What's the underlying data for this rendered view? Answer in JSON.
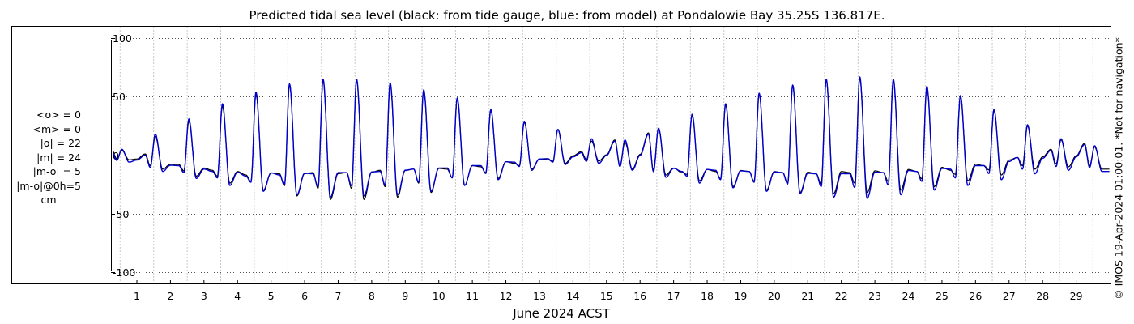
{
  "chart_data": {
    "type": "line",
    "title": "Predicted tidal sea level (black: from tide gauge, blue: from model) at Pondalowie Bay 35.25S 136.817E.",
    "xlabel": "June 2024 ACST",
    "ylabel": "",
    "xlim": [
      0.3,
      30.0
    ],
    "ylim": [
      -110,
      110
    ],
    "yticks": [
      -100,
      -50,
      0,
      50,
      100
    ],
    "xticks": [
      1,
      2,
      3,
      4,
      5,
      6,
      7,
      8,
      9,
      10,
      11,
      12,
      13,
      14,
      15,
      16,
      17,
      18,
      19,
      20,
      21,
      22,
      23,
      24,
      25,
      26,
      27,
      28,
      29
    ],
    "x_unit": "day of June 2024",
    "grid": true,
    "series": [
      {
        "color": "#000000",
        "daily_high": [
          4,
          16,
          29,
          42,
          52,
          60,
          64,
          64,
          61,
          55,
          48,
          38,
          28,
          22,
          12,
          11,
          23,
          34,
          43,
          52,
          59,
          64,
          66,
          64,
          58,
          50,
          38,
          25,
          13,
          7
        ],
        "daily_low": [
          -4,
          -12,
          -18,
          -24,
          -30,
          -35,
          -38,
          -38,
          -36,
          -32,
          -26,
          -20,
          -12,
          -7,
          -5,
          -12,
          -17,
          -22,
          -27,
          -30,
          -32,
          -33,
          -32,
          -30,
          -27,
          -22,
          -17,
          -12,
          -10,
          -12
        ],
        "daily_second_high": [
          5,
          1,
          -8,
          -13,
          -17,
          -16,
          -15,
          -15,
          -13,
          -12,
          -12,
          -10,
          -7,
          -4,
          3,
          13,
          19,
          -15,
          -14,
          -14,
          -15,
          -16,
          -15,
          -15,
          -14,
          -13,
          -9,
          -2,
          5,
          10
        ]
      },
      {
        "color": "#0000cc",
        "daily_high": [
          5,
          18,
          31,
          44,
          54,
          61,
          65,
          65,
          62,
          56,
          49,
          39,
          29,
          22,
          14,
          13,
          23,
          35,
          44,
          53,
          60,
          65,
          67,
          65,
          59,
          51,
          39,
          26,
          14,
          8
        ],
        "daily_low": [
          -6,
          -14,
          -20,
          -26,
          -31,
          -34,
          -36,
          -35,
          -34,
          -31,
          -26,
          -21,
          -13,
          -8,
          -7,
          -13,
          -19,
          -24,
          -28,
          -31,
          -33,
          -36,
          -37,
          -34,
          -30,
          -26,
          -21,
          -16,
          -13,
          -14
        ],
        "daily_second_high": [
          4,
          0,
          -9,
          -14,
          -18,
          -17,
          -16,
          -15,
          -14,
          -12,
          -11,
          -9,
          -6,
          -3,
          2,
          12,
          18,
          -14,
          -13,
          -14,
          -15,
          -16,
          -16,
          -15,
          -14,
          -12,
          -9,
          -2,
          4,
          9
        ]
      }
    ]
  },
  "stats": [
    "<o> = 0",
    "<m> = 0",
    "|o| = 22",
    "|m| = 24",
    "|m-o| = 5",
    "|m-o|@0h=5"
  ],
  "stats_unit": "cm",
  "copyright": "© IMOS 19-Apr-2024 01:00:01. *Not for navigation*"
}
